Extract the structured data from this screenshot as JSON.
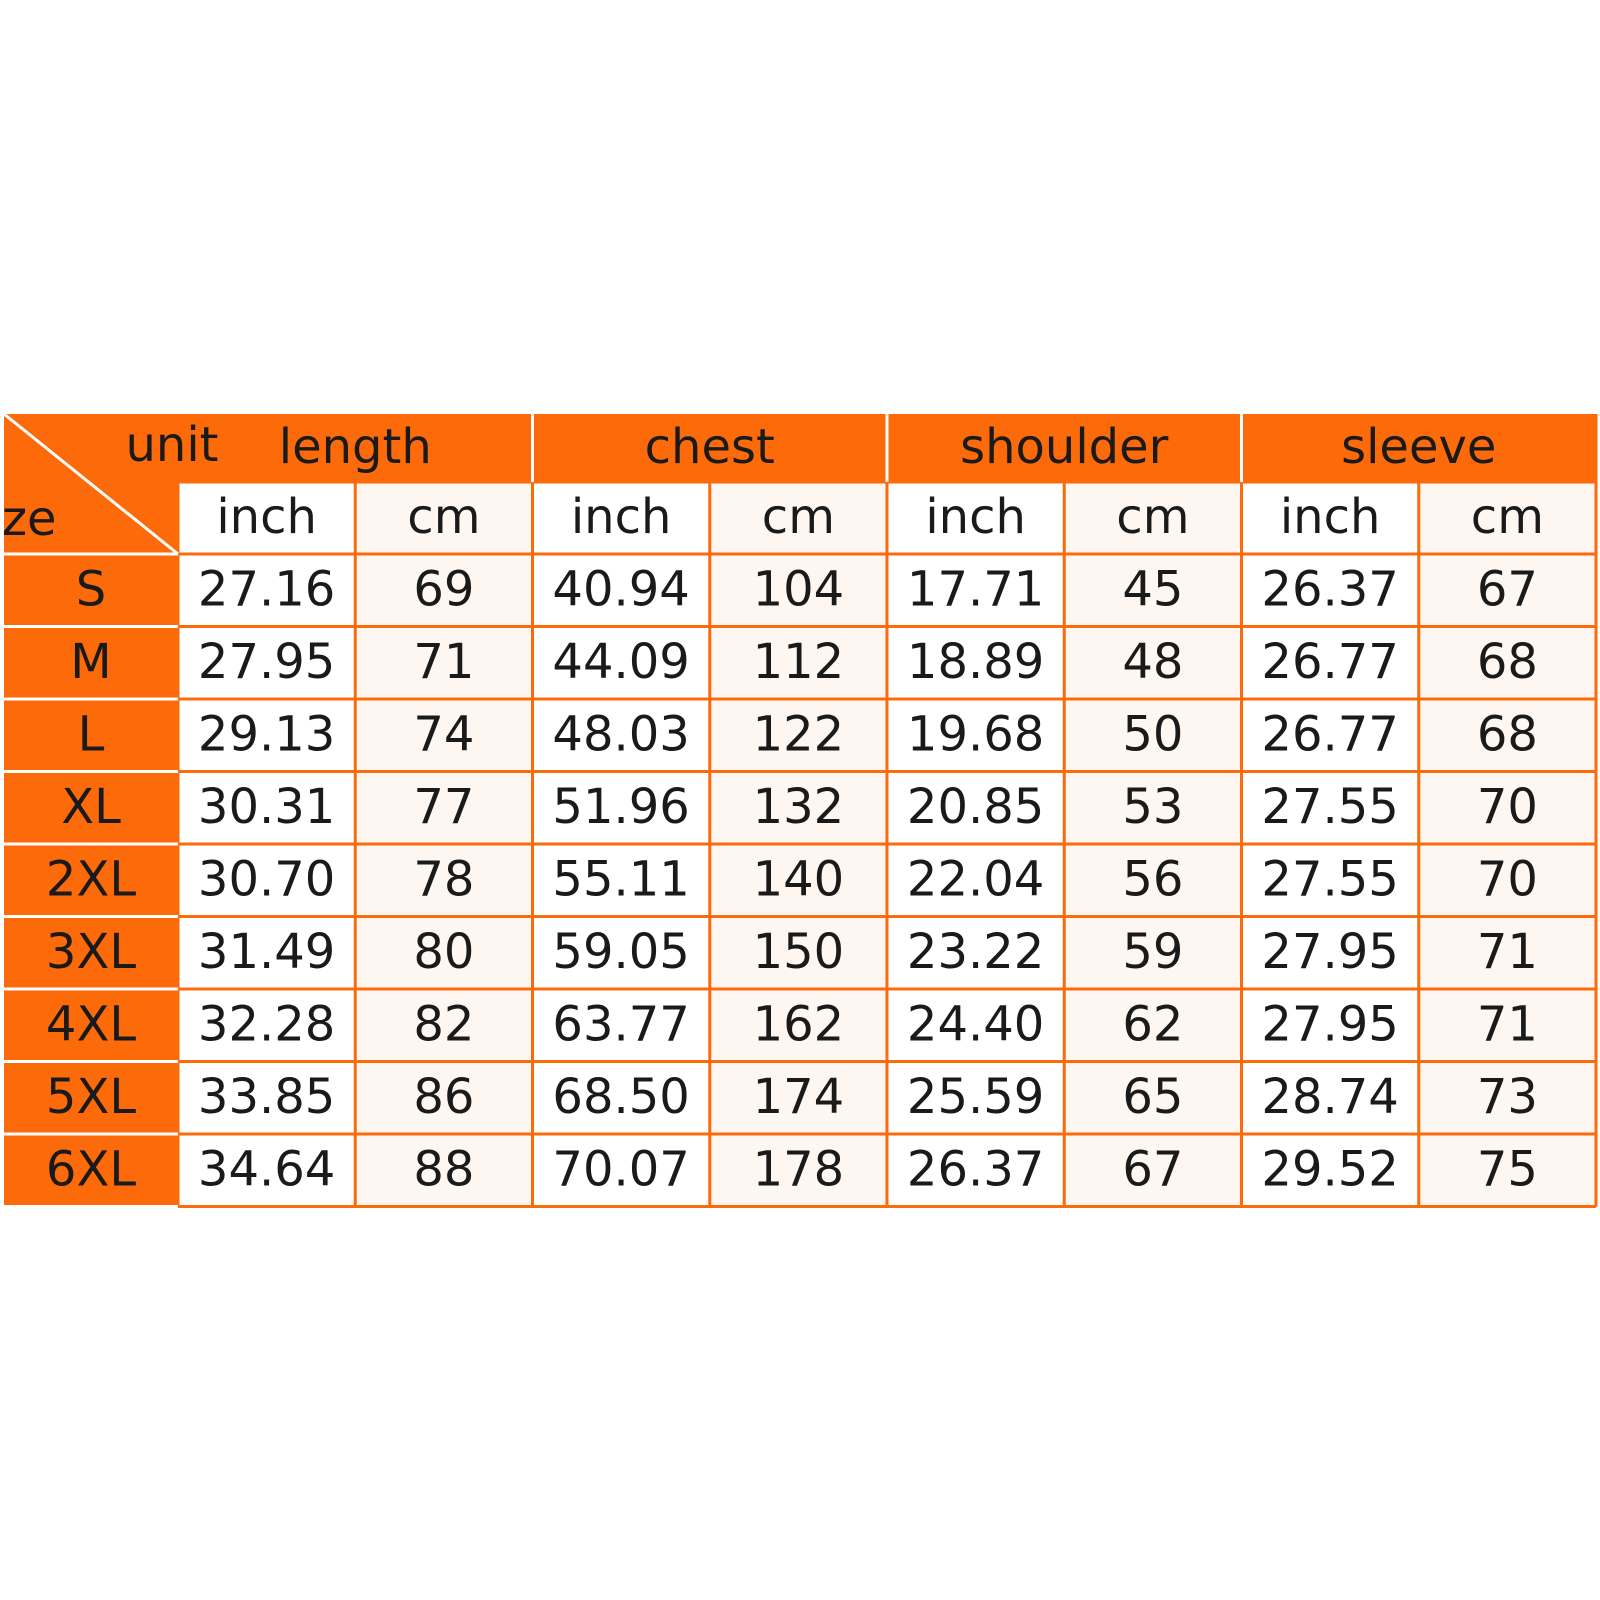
{
  "corner": {
    "top": "unit",
    "bottom": "size"
  },
  "groups": [
    "length",
    "chest",
    "shoulder",
    "sleeve"
  ],
  "units": [
    "inch",
    "cm",
    "inch",
    "cm",
    "inch",
    "cm",
    "inch",
    "cm"
  ],
  "rows": [
    {
      "size": "S",
      "cells": [
        "27.16",
        "69",
        "40.94",
        "104",
        "17.71",
        "45",
        "26.37",
        "67"
      ]
    },
    {
      "size": "M",
      "cells": [
        "27.95",
        "71",
        "44.09",
        "112",
        "18.89",
        "48",
        "26.77",
        "68"
      ]
    },
    {
      "size": "L",
      "cells": [
        "29.13",
        "74",
        "48.03",
        "122",
        "19.68",
        "50",
        "26.77",
        "68"
      ]
    },
    {
      "size": "XL",
      "cells": [
        "30.31",
        "77",
        "51.96",
        "132",
        "20.85",
        "53",
        "27.55",
        "70"
      ]
    },
    {
      "size": "2XL",
      "cells": [
        "30.70",
        "78",
        "55.11",
        "140",
        "22.04",
        "56",
        "27.55",
        "70"
      ]
    },
    {
      "size": "3XL",
      "cells": [
        "31.49",
        "80",
        "59.05",
        "150",
        "23.22",
        "59",
        "27.95",
        "71"
      ]
    },
    {
      "size": "4XL",
      "cells": [
        "32.28",
        "82",
        "63.77",
        "162",
        "24.40",
        "62",
        "27.95",
        "71"
      ]
    },
    {
      "size": "5XL",
      "cells": [
        "33.85",
        "86",
        "68.50",
        "174",
        "25.59",
        "65",
        "28.74",
        "73"
      ]
    },
    {
      "size": "6XL",
      "cells": [
        "34.64",
        "88",
        "70.07",
        "178",
        "26.37",
        "67",
        "29.52",
        "75"
      ]
    }
  ]
}
